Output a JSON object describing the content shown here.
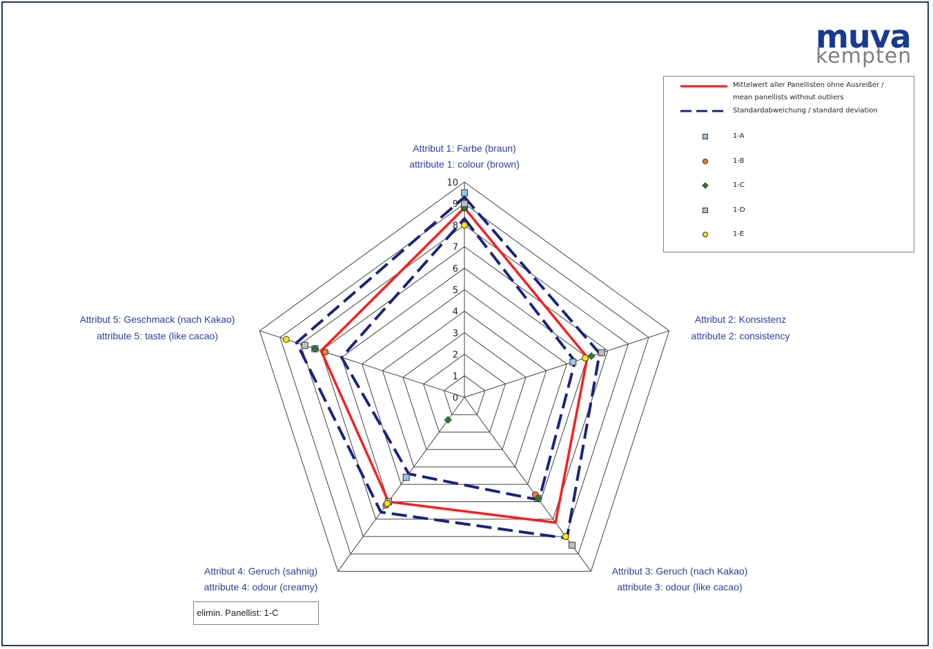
{
  "logo": {
    "main": "muva",
    "sub": "kempten"
  },
  "note": "elimin. Panellist: 1-C",
  "legend": {
    "mean_line_1": "Mittelwert aller Panellisten ohne Ausreißer /",
    "mean_line_2": "mean panellists without outliers",
    "std_label": "Standardabweichung / standard deviation",
    "panellists": [
      {
        "name": "1-A",
        "marker": "square",
        "color": "#9dc3e6"
      },
      {
        "name": "1-B",
        "marker": "circle",
        "color": "#ed7d31"
      },
      {
        "name": "1-C",
        "marker": "diamond",
        "color": "#2e7d32"
      },
      {
        "name": "1-D",
        "marker": "square",
        "color": "#bfbfbf"
      },
      {
        "name": "1-E",
        "marker": "circle",
        "color": "#ffe600"
      }
    ]
  },
  "chart_data": {
    "type": "radar",
    "rmin": 0,
    "rmax": 10,
    "ticks": [
      "0",
      "1",
      "2",
      "3",
      "4",
      "5",
      "6",
      "7",
      "8",
      "9",
      "10"
    ],
    "grid": true,
    "legend_position": "top-right",
    "axes": [
      {
        "label1": "Attribut 1: Farbe (braun)",
        "label2": "attribute 1: colour (brown)"
      },
      {
        "label1": "Attribut 2: Konsistenz",
        "label2": "attribute 2: consistency"
      },
      {
        "label1": "Attribut 3: Geruch (nach Kakao)",
        "label2": "attribute 3: odour (like cacao)"
      },
      {
        "label1": "Attribut 4: Geruch (sahnig)",
        "label2": "attribute 4: odour (creamy)"
      },
      {
        "label1": "Attribut 5: Geschmack (nach Kakao)",
        "label2": "attribute 5: taste (like cacao)"
      }
    ],
    "mean": [
      8.8,
      6.0,
      7.2,
      6.0,
      7.0
    ],
    "std_upper": [
      9.3,
      6.6,
      8.1,
      6.6,
      8.2
    ],
    "std_lower": [
      8.3,
      5.4,
      5.9,
      4.4,
      6.0
    ],
    "series": [
      {
        "name": "1-A",
        "marker": "square",
        "color": "#9dc3e6",
        "values": [
          9.5,
          5.3,
          5.8,
          4.6,
          7.3
        ]
      },
      {
        "name": "1-B",
        "marker": "circle",
        "color": "#ed7d31",
        "values": [
          8.8,
          5.9,
          5.6,
          6.2,
          6.8
        ]
      },
      {
        "name": "1-C",
        "marker": "diamond",
        "color": "#2e7d32",
        "values": [
          8.8,
          6.2,
          5.8,
          1.3,
          7.3
        ]
      },
      {
        "name": "1-D",
        "marker": "square",
        "color": "#bfbfbf",
        "values": [
          9.0,
          6.7,
          8.5,
          6.0,
          7.8
        ]
      },
      {
        "name": "1-E",
        "marker": "circle",
        "color": "#ffe600",
        "values": [
          8.0,
          5.9,
          8.0,
          6.1,
          8.7
        ]
      }
    ]
  }
}
